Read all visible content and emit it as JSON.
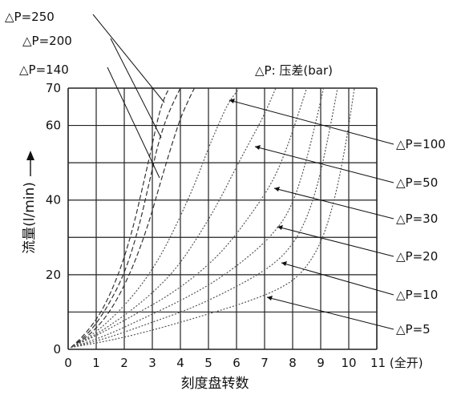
{
  "chart_data": {
    "type": "line",
    "title": "",
    "legend_title": "△P: 压差(bar)",
    "xlabel": "刻度盘转数",
    "ylabel": "流量(l/min)",
    "x_ticks": [
      "0",
      "1",
      "2",
      "3",
      "4",
      "5",
      "6",
      "7",
      "8",
      "9",
      "10",
      "11 (全开)"
    ],
    "y_ticks": [
      "0",
      "20",
      "40",
      "60",
      "70"
    ],
    "xlim": [
      0,
      11
    ],
    "ylim": [
      0,
      70
    ],
    "grid": true,
    "series": [
      {
        "name": "△P=250",
        "x": [
          0.1,
          0.6,
          1.2,
          1.8,
          2.3,
          2.7,
          3.0,
          3.2,
          3.4,
          3.6
        ],
        "y": [
          0.5,
          4,
          10,
          20,
          32,
          45,
          55,
          62,
          67,
          70
        ]
      },
      {
        "name": "△P=200",
        "x": [
          0.1,
          0.7,
          1.3,
          2.0,
          2.5,
          2.9,
          3.2,
          3.5,
          3.8,
          4.0
        ],
        "y": [
          0.5,
          4,
          10,
          20,
          32,
          45,
          55,
          62,
          67,
          70
        ]
      },
      {
        "name": "△P=140",
        "x": [
          0.1,
          0.8,
          1.5,
          2.2,
          2.8,
          3.3,
          3.7,
          4.0,
          4.3,
          4.5
        ],
        "y": [
          0.5,
          4,
          10,
          20,
          32,
          45,
          55,
          62,
          67,
          70
        ]
      },
      {
        "name": "△P=100",
        "x": [
          0.1,
          0.9,
          1.8,
          2.6,
          3.3,
          3.9,
          4.5,
          5.0,
          5.4,
          5.7,
          6.1
        ],
        "y": [
          0.5,
          4,
          10,
          17,
          25,
          34,
          44,
          54,
          61,
          66,
          70
        ]
      },
      {
        "name": "△P=50",
        "x": [
          0.1,
          1.0,
          2.0,
          3.0,
          3.9,
          4.7,
          5.4,
          6.0,
          6.5,
          7.0,
          7.4
        ],
        "y": [
          0.5,
          4,
          9,
          15,
          22,
          31,
          40,
          49,
          56,
          63,
          70
        ]
      },
      {
        "name": "△P=30",
        "x": [
          0.1,
          1.1,
          2.3,
          3.5,
          4.6,
          5.6,
          6.6,
          7.3,
          7.8,
          8.2,
          8.5
        ],
        "y": [
          0.5,
          4,
          9,
          14,
          20,
          27,
          37,
          45,
          54,
          63,
          70
        ]
      },
      {
        "name": "△P=20",
        "x": [
          0.1,
          1.3,
          2.6,
          4.0,
          5.2,
          6.3,
          7.2,
          7.9,
          8.4,
          8.8,
          9.1
        ],
        "y": [
          0.5,
          3.5,
          8,
          13,
          18,
          24,
          30,
          37,
          48,
          60,
          70
        ]
      },
      {
        "name": "△P=10",
        "x": [
          0.1,
          1.4,
          2.9,
          4.4,
          5.8,
          7.0,
          7.8,
          8.4,
          8.9,
          9.3,
          9.6
        ],
        "y": [
          0.5,
          3,
          7,
          11,
          16,
          21,
          26,
          33,
          44,
          58,
          70
        ]
      },
      {
        "name": "△P=5",
        "x": [
          0.1,
          1.6,
          3.2,
          4.8,
          6.3,
          7.5,
          8.3,
          9.0,
          9.5,
          9.9,
          10.2
        ],
        "y": [
          0.5,
          2.5,
          5.5,
          9,
          12.5,
          16,
          20,
          28,
          40,
          55,
          70
        ]
      }
    ],
    "left_labels": [
      "△P=250",
      "△P=200",
      "△P=140"
    ],
    "right_labels": [
      "△P=100",
      "△P=50",
      "△P=30",
      "△P=20",
      "△P=10",
      "△P=5"
    ]
  }
}
